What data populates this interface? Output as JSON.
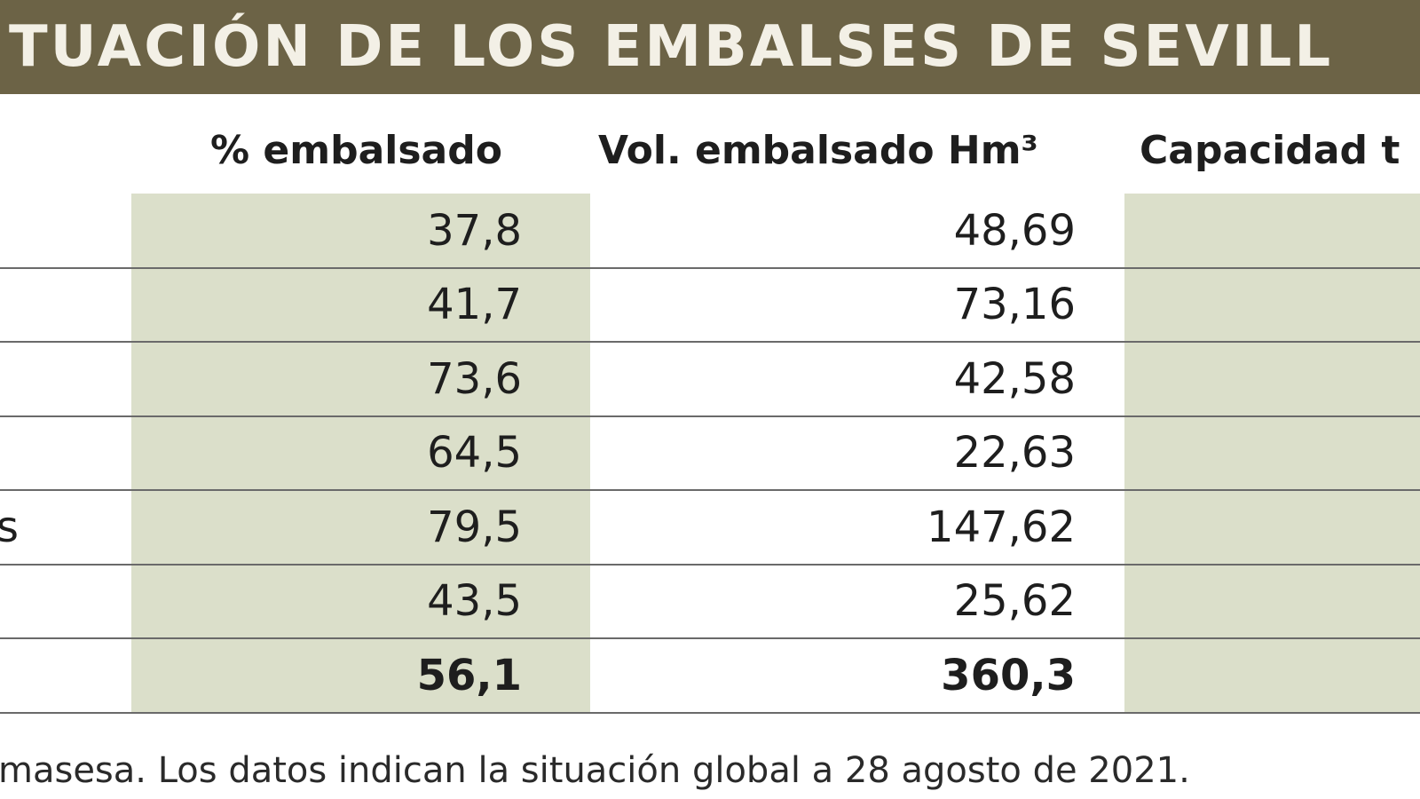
{
  "header": {
    "title": "TUACIÓN DE LOS EMBALSES DE SEVILL"
  },
  "table": {
    "columns": [
      "% embalsado",
      "Vol. embalsado Hm³",
      "Capacidad t"
    ],
    "rows": [
      {
        "pct": "37,8",
        "vol": "48,69"
      },
      {
        "pct": "41,7",
        "vol": "73,16"
      },
      {
        "pct": "73,6",
        "vol": "42,58"
      },
      {
        "pct": "64,5",
        "vol": "22,63"
      },
      {
        "name": "s",
        "pct": "79,5",
        "vol": "147,62"
      },
      {
        "pct": "43,5",
        "vol": "25,62"
      }
    ],
    "total": {
      "pct": "56,1",
      "vol": "360,3"
    }
  },
  "footer": {
    "note": "masesa. Los datos indican la situación global a 28 agosto de 2021."
  }
}
